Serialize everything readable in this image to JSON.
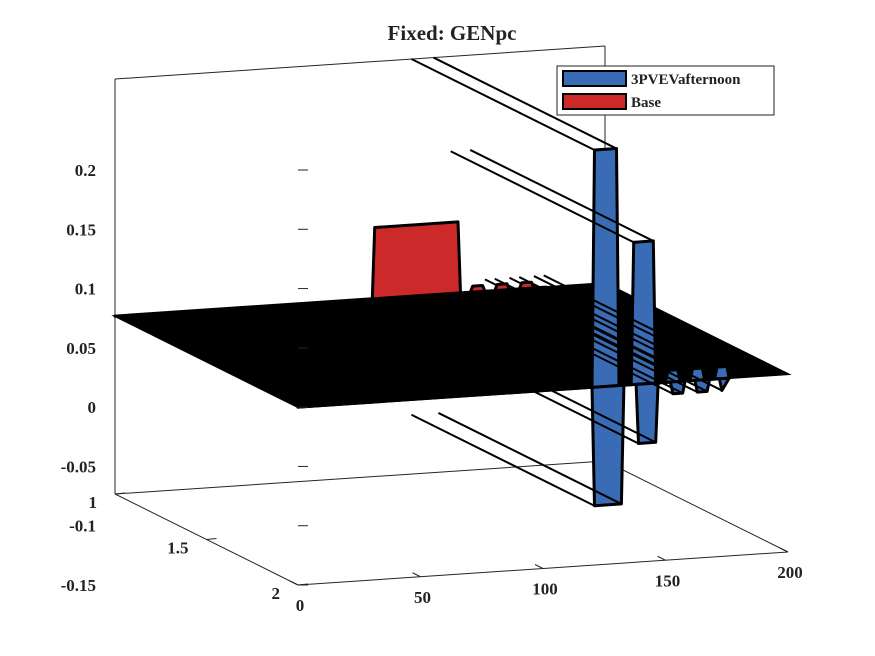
{
  "chart_data": {
    "type": "area",
    "title": "Fixed: GENpc",
    "xlabel": "",
    "ylabel": "",
    "zlabel": "",
    "x_ticks": [
      "0",
      "50",
      "100",
      "150",
      "200"
    ],
    "y_ticks": [
      "1",
      "1.5",
      "2"
    ],
    "z_ticks": [
      "0.2",
      "0.15",
      "0.1",
      "0.05",
      "0",
      "-0.05",
      "-0.1",
      "-0.15"
    ],
    "xlim": [
      0,
      200
    ],
    "ylim": [
      1,
      2
    ],
    "zlim": [
      -0.15,
      0.2
    ],
    "legend_position": "top-right",
    "series": [
      {
        "name": "3PVEVafternoon",
        "color": "#3a6cb5",
        "row": 2,
        "x": [
          0,
          120,
          121,
          130,
          131,
          136,
          137,
          145,
          146,
          150,
          151,
          155,
          156,
          160,
          161,
          165,
          166,
          170,
          171,
          175,
          176
        ],
        "z": [
          0,
          0,
          0.2,
          0.2,
          0,
          0,
          0.12,
          0.12,
          0,
          0,
          0.01,
          0.01,
          0,
          0,
          0.01,
          0.01,
          0,
          0,
          0.01,
          0.01,
          0
        ]
      },
      {
        "name": "",
        "color": "#3a6cb5",
        "row": 2,
        "x": [
          0,
          120,
          121,
          132,
          133,
          138,
          139,
          146,
          147,
          152,
          153,
          157,
          158,
          162,
          163,
          167,
          168,
          172,
          173,
          176
        ],
        "z": [
          0,
          0,
          -0.1,
          -0.1,
          0,
          0,
          -0.05,
          -0.05,
          0,
          0,
          -0.01,
          -0.01,
          0,
          0,
          -0.01,
          -0.01,
          0,
          0,
          -0.01,
          0
        ]
      },
      {
        "name": "Base",
        "color": "#cc2a2a",
        "row": 1,
        "x": [
          0,
          105,
          106,
          140,
          141,
          145,
          146,
          150,
          151,
          155,
          156,
          160,
          161,
          165,
          166,
          170,
          171,
          175,
          176
        ],
        "z": [
          0,
          0,
          0.06,
          0.06,
          0,
          0,
          0.005,
          0.005,
          0,
          0,
          0.005,
          0.005,
          0,
          0,
          0.005,
          0.005,
          0,
          0,
          0
        ]
      }
    ]
  },
  "legend": {
    "items": [
      {
        "label": "3PVEVafternoon",
        "color": "#3a6cb5"
      },
      {
        "label": "Base",
        "color": "#cc2a2a"
      }
    ]
  }
}
